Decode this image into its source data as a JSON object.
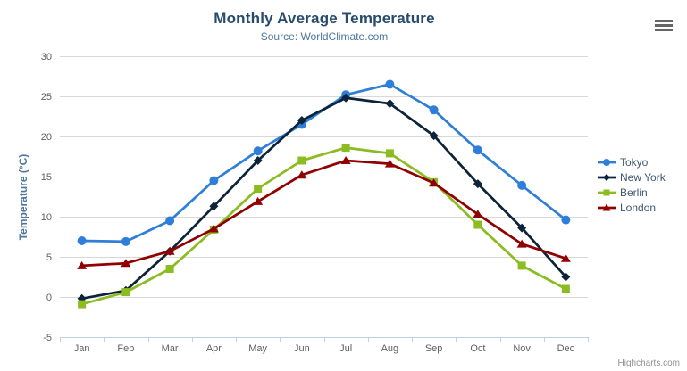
{
  "icons": {
    "context_menu": "hamburger-icon"
  },
  "colors": {
    "title_text": "#274b6d",
    "subtitle_text": "#4d759e",
    "axis_title_text": "#4d759e",
    "tick_label_text": "#606060",
    "legend_text": "#3e576f",
    "gridline": "#d8d8d8",
    "axis_line": "#c0d0e0",
    "credits_text": "#909090",
    "menu_icon": "#666666",
    "background": "#ffffff"
  },
  "chart_data": {
    "type": "line",
    "title": "Monthly Average Temperature",
    "subtitle": "Source: WorldClimate.com",
    "xlabel": "",
    "ylabel": "Temperature (°C)",
    "ylim": [
      -5,
      30
    ],
    "ytick_interval": 5,
    "grid": true,
    "legend_position": "right",
    "categories": [
      "Jan",
      "Feb",
      "Mar",
      "Apr",
      "May",
      "Jun",
      "Jul",
      "Aug",
      "Sep",
      "Oct",
      "Nov",
      "Dec"
    ],
    "series": [
      {
        "name": "Tokyo",
        "color": "#2f7ed8",
        "marker": "circle",
        "values": [
          7.0,
          6.9,
          9.5,
          14.5,
          18.2,
          21.5,
          25.2,
          26.5,
          23.3,
          18.3,
          13.9,
          9.6
        ]
      },
      {
        "name": "New York",
        "color": "#0d233a",
        "marker": "diamond",
        "values": [
          -0.2,
          0.8,
          5.7,
          11.3,
          17.0,
          22.0,
          24.8,
          24.1,
          20.1,
          14.1,
          8.6,
          2.5
        ]
      },
      {
        "name": "Berlin",
        "color": "#8bbc21",
        "marker": "square",
        "values": [
          -0.9,
          0.6,
          3.5,
          8.4,
          13.5,
          17.0,
          18.6,
          17.9,
          14.3,
          9.0,
          3.9,
          1.0
        ]
      },
      {
        "name": "London",
        "color": "#910000",
        "marker": "triangle",
        "values": [
          3.9,
          4.2,
          5.7,
          8.5,
          11.9,
          15.2,
          17.0,
          16.6,
          14.2,
          10.3,
          6.6,
          4.8
        ]
      }
    ],
    "credits": "Highcharts.com"
  }
}
